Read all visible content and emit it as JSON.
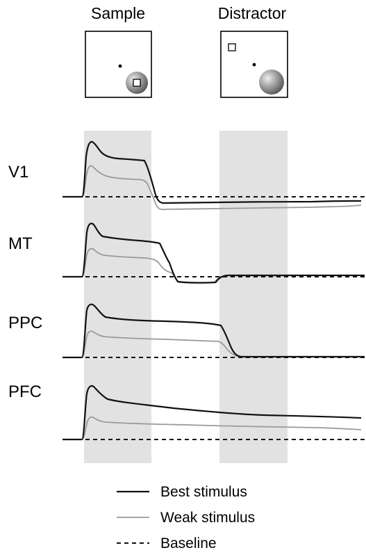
{
  "panels": {
    "sample": {
      "title": "Sample"
    },
    "distractor": {
      "title": "Distractor"
    }
  },
  "areas": [
    {
      "label": "V1"
    },
    {
      "label": "MT"
    },
    {
      "label": "PPC"
    },
    {
      "label": "PFC"
    }
  ],
  "legend": {
    "best": "Best stimulus",
    "weak": "Weak stimulus",
    "baseline": "Baseline"
  },
  "colors": {
    "best": "#111111",
    "weak": "#9a9a9a",
    "shade": "#e2e2e2",
    "baseline": "#111111",
    "disc_center": "#eeeeee",
    "disc_edge": "#555555"
  }
}
